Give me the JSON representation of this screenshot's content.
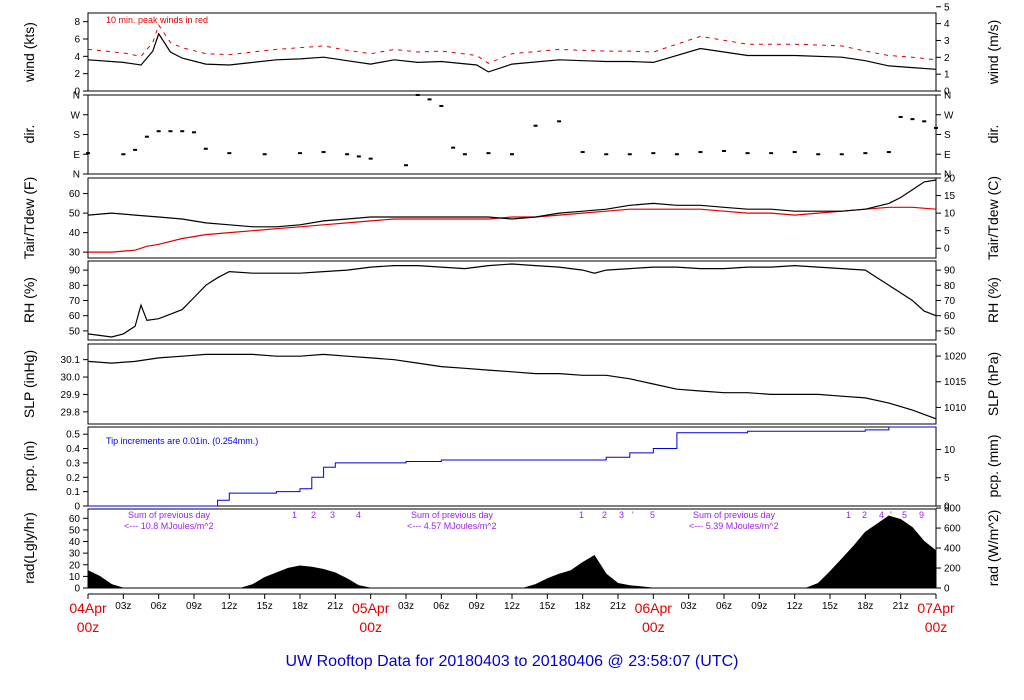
{
  "title": "UW Rooftop Data for 20180403  to  20180406 @ 23:58:07  (UTC)",
  "colors": {
    "black": "#000000",
    "red": "#e00000",
    "blue": "#0000dd",
    "purple": "#a020f0",
    "title": "#0000cc"
  },
  "time_axis": {
    "hours": [
      "03z",
      "06z",
      "09z",
      "12z",
      "15z",
      "18z",
      "21z"
    ],
    "days": [
      {
        "top": "04Apr",
        "bottom": "00z"
      },
      {
        "top": "05Apr",
        "bottom": "00z"
      },
      {
        "top": "06Apr",
        "bottom": "00z"
      },
      {
        "top": "07Apr",
        "bottom": "00z"
      }
    ]
  },
  "panels": {
    "wind": {
      "left_label": "wind (kts)",
      "right_label": "wind (m/s)",
      "left_ticks": [
        "0",
        "2",
        "4",
        "6",
        "8"
      ],
      "right_ticks": [
        "0",
        "1",
        "2",
        "3",
        "4",
        "5"
      ],
      "note": "10 min. peak winds in red"
    },
    "dir": {
      "left_label": "dir.",
      "right_label": "dir.",
      "ticks": [
        "N",
        "E",
        "S",
        "W",
        "N"
      ]
    },
    "temp": {
      "left_label": "Tair/Tdew (F)",
      "right_label": "Tair/Tdew (C)",
      "left_ticks": [
        "30",
        "40",
        "50",
        "60"
      ],
      "right_ticks": [
        "0",
        "5",
        "10",
        "15",
        "20"
      ]
    },
    "rh": {
      "left_label": "RH (%)",
      "right_label": "RH (%)",
      "left_ticks": [
        "50",
        "60",
        "70",
        "80",
        "90"
      ],
      "right_ticks": [
        "50",
        "60",
        "70",
        "80",
        "90"
      ]
    },
    "slp": {
      "left_label": "SLP (inHg)",
      "right_label": "SLP (hPa)",
      "left_ticks": [
        "29.8",
        "29.9",
        "30.0",
        "30.1"
      ],
      "right_ticks": [
        "1010",
        "1015",
        "1020"
      ]
    },
    "pcp": {
      "left_label": "pcp. (in)",
      "right_label": "pcp. (mm)",
      "left_ticks": [
        "0",
        "0.1",
        "0.2",
        "0.3",
        "0.4",
        "0.5"
      ],
      "right_ticks": [
        "0",
        "5",
        "10"
      ],
      "note": "Tip increments are 0.01in. (0.254mm.)"
    },
    "rad": {
      "left_label": "rad(Lgly/hr)",
      "right_label": "rad (W/m^2)",
      "left_ticks": [
        "0",
        "10",
        "20",
        "30",
        "40",
        "50",
        "60"
      ],
      "right_ticks": [
        "0",
        "200",
        "400",
        "600",
        "800"
      ],
      "sums": [
        {
          "line1": "Sum of previous day",
          "line2": "<--- 10.8 MJoules/m^2"
        },
        {
          "line1": "Sum of previous day",
          "line2": "<--- 4.57 MJoules/m^2"
        },
        {
          "line1": "Sum of previous day",
          "line2": "<--- 5.39 MJoules/m^2"
        }
      ],
      "uv_marks": [
        [
          "1",
          "2",
          "3",
          "4"
        ],
        [
          "1",
          "2",
          "3",
          "'",
          "5"
        ],
        [
          "1",
          "2",
          "4",
          "'",
          "5",
          "9"
        ]
      ]
    }
  },
  "chart_data": {
    "type": "line",
    "x_unit": "hours since 04Apr 00z",
    "x_range": [
      0,
      72
    ],
    "wind_kts": {
      "series": [
        {
          "name": "wind",
          "x": [
            0,
            3,
            4.5,
            5.5,
            6,
            7,
            8,
            10,
            12,
            14,
            16,
            18,
            20,
            22,
            24,
            26,
            28,
            30,
            33,
            34,
            36,
            40,
            42,
            44,
            46,
            48,
            52,
            56,
            60,
            64,
            66,
            68,
            70,
            72
          ],
          "y": [
            3.6,
            3.3,
            3.0,
            4.6,
            6.6,
            4.5,
            3.8,
            3.1,
            3.0,
            3.3,
            3.6,
            3.7,
            3.9,
            3.5,
            3.1,
            3.6,
            3.3,
            3.4,
            3.0,
            2.2,
            3.1,
            3.6,
            3.5,
            3.4,
            3.4,
            3.3,
            4.9,
            4.1,
            4.1,
            3.9,
            3.5,
            2.9,
            2.7,
            2.5
          ]
        },
        {
          "name": "10 min. peak winds in red",
          "x": [
            0,
            3,
            4.5,
            5.5,
            6,
            7,
            8,
            10,
            12,
            14,
            16,
            18,
            20,
            22,
            24,
            26,
            28,
            30,
            33,
            34,
            36,
            40,
            42,
            44,
            46,
            48,
            52,
            56,
            60,
            64,
            66,
            68,
            70,
            72
          ],
          "y": [
            4.8,
            4.4,
            4.0,
            5.6,
            7.6,
            5.6,
            5.0,
            4.3,
            4.2,
            4.5,
            4.8,
            5.0,
            5.2,
            4.7,
            4.3,
            4.8,
            4.5,
            4.6,
            4.1,
            3.2,
            4.3,
            4.8,
            4.7,
            4.6,
            4.6,
            4.5,
            6.3,
            5.4,
            5.4,
            5.2,
            4.6,
            4.1,
            3.9,
            3.6
          ]
        }
      ],
      "ylim": [
        0,
        9
      ]
    },
    "wind_dir_deg": {
      "x": [
        0,
        3,
        4,
        5,
        6,
        7,
        8,
        9,
        10,
        12,
        15,
        18,
        20,
        22,
        23,
        24,
        27,
        28,
        29,
        30,
        31,
        32,
        34,
        36,
        38,
        40,
        42,
        44,
        46,
        48,
        50,
        52,
        54,
        56,
        58,
        60,
        62,
        64,
        66,
        68,
        69,
        70,
        71,
        72
      ],
      "y": [
        95,
        90,
        110,
        170,
        195,
        195,
        195,
        190,
        115,
        95,
        90,
        95,
        100,
        90,
        80,
        70,
        40,
        360,
        340,
        310,
        120,
        90,
        95,
        90,
        220,
        240,
        100,
        90,
        90,
        95,
        90,
        100,
        105,
        95,
        95,
        100,
        90,
        90,
        95,
        100,
        260,
        250,
        240,
        210
      ],
      "ylim": [
        0,
        360
      ]
    },
    "temp_F": {
      "series": [
        {
          "name": "Tair",
          "x": [
            0,
            2,
            4,
            6,
            8,
            10,
            12,
            14,
            16,
            18,
            20,
            22,
            24,
            26,
            28,
            30,
            32,
            34,
            36,
            38,
            40,
            42,
            44,
            46,
            48,
            50,
            52,
            54,
            56,
            58,
            60,
            62,
            64,
            66,
            68,
            69,
            70,
            71,
            72
          ],
          "y": [
            49,
            50,
            49,
            48,
            47,
            45,
            44,
            43,
            43,
            44,
            46,
            47,
            48,
            48,
            48,
            48,
            48,
            48,
            47,
            48,
            50,
            51,
            52,
            54,
            55,
            54,
            54,
            53,
            52,
            52,
            51,
            51,
            51,
            52,
            55,
            58,
            62,
            66,
            67
          ]
        },
        {
          "name": "Tdew",
          "x": [
            0,
            2,
            4,
            5,
            6,
            8,
            10,
            12,
            14,
            16,
            18,
            20,
            22,
            24,
            26,
            28,
            30,
            32,
            34,
            36,
            38,
            40,
            42,
            44,
            46,
            48,
            50,
            52,
            54,
            56,
            58,
            60,
            62,
            64,
            66,
            68,
            70,
            72
          ],
          "y": [
            30,
            30,
            31,
            33,
            34,
            37,
            39,
            40,
            41,
            42,
            43,
            44,
            45,
            46,
            47,
            47,
            47,
            47,
            47,
            48,
            48,
            49,
            50,
            51,
            52,
            52,
            52,
            52,
            51,
            50,
            50,
            49,
            50,
            51,
            52,
            53,
            53,
            52
          ]
        }
      ],
      "ylim": [
        27,
        68
      ]
    },
    "rh_pct": {
      "x": [
        0,
        2,
        3,
        4,
        4.5,
        5,
        6,
        7,
        8,
        9,
        10,
        11,
        12,
        14,
        16,
        18,
        20,
        22,
        24,
        26,
        28,
        30,
        32,
        34,
        36,
        38,
        40,
        42,
        43,
        44,
        46,
        48,
        50,
        52,
        54,
        56,
        58,
        60,
        62,
        64,
        66,
        67,
        68,
        69,
        70,
        71,
        72
      ],
      "y": [
        48,
        46,
        48,
        53,
        67,
        57,
        58,
        61,
        64,
        72,
        80,
        85,
        89,
        88,
        88,
        88,
        89,
        90,
        92,
        93,
        93,
        92,
        91,
        93,
        94,
        93,
        92,
        90,
        88,
        90,
        91,
        92,
        92,
        91,
        91,
        92,
        92,
        93,
        92,
        91,
        90,
        85,
        80,
        75,
        70,
        63,
        60
      ],
      "ylim": [
        44,
        96
      ]
    },
    "slp_inHg": {
      "x": [
        0,
        2,
        4,
        6,
        8,
        10,
        12,
        14,
        16,
        18,
        20,
        22,
        24,
        26,
        28,
        30,
        32,
        34,
        36,
        38,
        40,
        42,
        44,
        46,
        48,
        50,
        52,
        54,
        56,
        58,
        60,
        62,
        64,
        66,
        68,
        70,
        72
      ],
      "y": [
        30.09,
        30.08,
        30.09,
        30.11,
        30.12,
        30.13,
        30.13,
        30.13,
        30.12,
        30.12,
        30.13,
        30.12,
        30.11,
        30.1,
        30.08,
        30.06,
        30.05,
        30.04,
        30.03,
        30.02,
        30.02,
        30.01,
        30.01,
        29.99,
        29.96,
        29.93,
        29.92,
        29.91,
        29.91,
        29.9,
        29.9,
        29.9,
        29.89,
        29.88,
        29.85,
        29.81,
        29.76
      ],
      "ylim": [
        29.73,
        30.19
      ]
    },
    "pcp_in": {
      "x": [
        0,
        9,
        11,
        12,
        15,
        16,
        18,
        19,
        20,
        21,
        24,
        27,
        30,
        33,
        36,
        39,
        42,
        44,
        46,
        48,
        50,
        54,
        56,
        60,
        63,
        66,
        68,
        72
      ],
      "y": [
        0,
        0,
        0.04,
        0.09,
        0.09,
        0.1,
        0.12,
        0.2,
        0.27,
        0.3,
        0.3,
        0.31,
        0.32,
        0.32,
        0.32,
        0.32,
        0.32,
        0.34,
        0.37,
        0.4,
        0.51,
        0.51,
        0.52,
        0.52,
        0.52,
        0.53,
        0.55,
        0.55
      ],
      "ylim": [
        0,
        0.55
      ]
    },
    "rad_lgly_hr": {
      "x": [
        0,
        1,
        2,
        3,
        4,
        12,
        13,
        14,
        15,
        16,
        17,
        18,
        19,
        20,
        21,
        22,
        23,
        24,
        36,
        37,
        38,
        39,
        40,
        41,
        42,
        43,
        44,
        45,
        46,
        47,
        48,
        60,
        61,
        62,
        63,
        64,
        65,
        66,
        67,
        68,
        69,
        70,
        71,
        72
      ],
      "y": [
        15,
        10,
        3,
        0,
        0,
        0,
        0,
        3,
        9,
        13,
        17,
        19,
        18,
        16,
        13,
        8,
        2,
        0,
        0,
        0,
        3,
        8,
        12,
        15,
        22,
        28,
        12,
        4,
        2,
        1,
        0,
        0,
        0,
        4,
        14,
        25,
        36,
        48,
        55,
        62,
        59,
        52,
        40,
        32
      ],
      "ylim": [
        0,
        68
      ]
    }
  }
}
